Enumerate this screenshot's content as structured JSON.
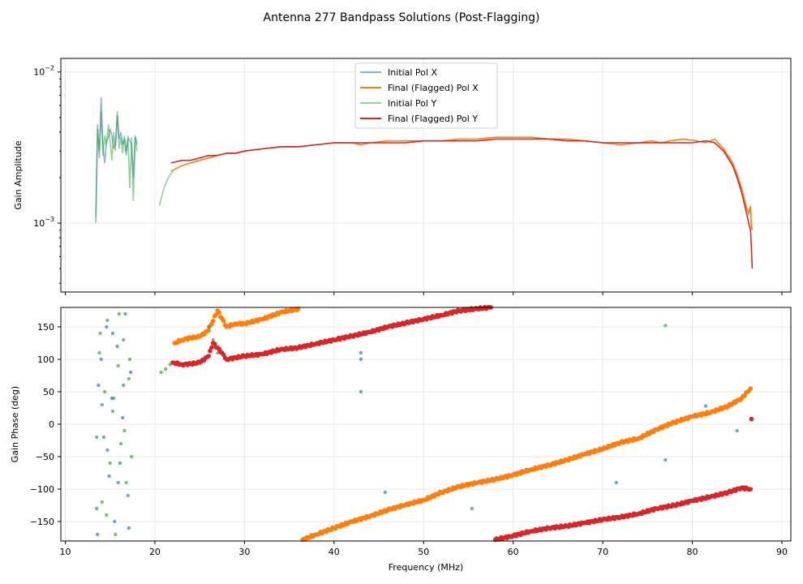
{
  "chart_data": [
    {
      "type": "line",
      "panel": "amplitude",
      "title": "Antenna 277 Bandpass Solutions (Post-Flagging)",
      "xlabel": "",
      "ylabel": "Gain Amplitude",
      "yscale": "log",
      "xlim": [
        9.5,
        91
      ],
      "ylim": [
        0.00035,
        0.0123
      ],
      "x_ticks": [
        10,
        20,
        30,
        40,
        50,
        60,
        70,
        80,
        90
      ],
      "y_ticks": [
        {
          "value": 0.001,
          "base": "10",
          "exp": "−3"
        },
        {
          "value": 0.01,
          "base": "10",
          "exp": "−2"
        }
      ],
      "grid": true,
      "legend_position": "top-center",
      "series": [
        {
          "name": "Initial Pol X",
          "color": "#1f77b4",
          "x": [
            13.4,
            13.6,
            13.8,
            14.0,
            14.2,
            14.4,
            14.6,
            14.8,
            15.0,
            15.2,
            15.4,
            15.6,
            15.8,
            16.0,
            16.2,
            16.4,
            16.6,
            16.8,
            17.0,
            17.2,
            17.4,
            17.6,
            17.8,
            18.0
          ],
          "y": [
            0.0011,
            0.0045,
            0.0027,
            0.0068,
            0.0032,
            0.0025,
            0.0035,
            0.0037,
            0.0042,
            0.0038,
            0.0031,
            0.0034,
            0.0052,
            0.0036,
            0.004,
            0.0033,
            0.0036,
            0.0028,
            0.0037,
            0.0035,
            0.0033,
            0.002,
            0.0038,
            0.0033
          ]
        },
        {
          "name": "Final (Flagged) Pol X",
          "color": "#ff7f0e",
          "x": [
            21.8,
            23.0,
            24.0,
            25.0,
            26.0,
            27.0,
            28.0,
            29.0,
            30.0,
            32.0,
            34.0,
            36.0,
            38.0,
            40.0,
            42.0,
            43.0,
            44.0,
            46.0,
            48.0,
            50.0,
            52.0,
            54.0,
            55.4,
            56.0,
            58.0,
            60.0,
            62.0,
            64.0,
            66.0,
            68.0,
            70.0,
            72.0,
            74.0,
            75.5,
            76.5,
            77.5,
            79.0,
            80.5,
            81.5,
            82.5,
            83.5,
            84.5,
            85.0,
            85.5,
            86.0,
            86.3,
            86.5,
            86.6,
            86.7
          ],
          "y": [
            0.0022,
            0.0024,
            0.0025,
            0.0026,
            0.0027,
            0.0028,
            0.0029,
            0.0029,
            0.003,
            0.0031,
            0.0032,
            0.0032,
            0.0033,
            0.0034,
            0.0034,
            0.0033,
            0.0034,
            0.0035,
            0.0035,
            0.0035,
            0.0035,
            0.0036,
            0.0036,
            0.0036,
            0.0037,
            0.0037,
            0.0037,
            0.0036,
            0.0036,
            0.0035,
            0.0034,
            0.0033,
            0.0034,
            0.0035,
            0.0034,
            0.0035,
            0.0036,
            0.0035,
            0.0034,
            0.0036,
            0.0031,
            0.0025,
            0.0021,
            0.0017,
            0.0013,
            0.00115,
            0.0013,
            0.00095,
            0.0009
          ]
        },
        {
          "name": "Initial Pol Y",
          "color": "#2ca02c",
          "x": [
            13.4,
            13.6,
            13.8,
            14.0,
            14.2,
            14.4,
            14.6,
            14.8,
            15.0,
            15.2,
            15.4,
            15.6,
            15.8,
            16.0,
            16.2,
            16.4,
            16.6,
            16.8,
            17.0,
            17.2,
            17.4,
            17.6,
            17.8,
            18.0,
            20.5,
            21.0,
            21.5,
            22.0
          ],
          "y": [
            0.001,
            0.0042,
            0.003,
            0.0055,
            0.0028,
            0.0038,
            0.0033,
            0.0045,
            0.0035,
            0.0026,
            0.004,
            0.003,
            0.0055,
            0.0031,
            0.0037,
            0.0029,
            0.0038,
            0.003,
            0.0036,
            0.0017,
            0.0037,
            0.0014,
            0.0037,
            0.003,
            0.0013,
            0.0017,
            0.002,
            0.0022
          ]
        },
        {
          "name": "Final (Flagged) Pol Y",
          "color": "#d62728",
          "x": [
            21.8,
            23.0,
            24.0,
            25.0,
            26.0,
            27.0,
            28.0,
            29.0,
            30.0,
            32.0,
            34.0,
            36.0,
            38.0,
            40.0,
            42.0,
            44.0,
            46.0,
            48.0,
            50.0,
            52.0,
            54.0,
            56.0,
            58.0,
            60.0,
            62.0,
            64.0,
            66.0,
            68.0,
            70.0,
            72.0,
            74.0,
            76.0,
            78.0,
            80.0,
            81.5,
            82.5,
            83.5,
            84.5,
            85.0,
            85.5,
            86.0,
            86.3,
            86.5,
            86.7
          ],
          "y": [
            0.0025,
            0.0026,
            0.0026,
            0.0027,
            0.0028,
            0.0028,
            0.0029,
            0.0029,
            0.003,
            0.0031,
            0.0032,
            0.0032,
            0.0033,
            0.0034,
            0.0034,
            0.0034,
            0.0034,
            0.0034,
            0.0035,
            0.0035,
            0.0035,
            0.0035,
            0.0036,
            0.0036,
            0.0036,
            0.0036,
            0.0035,
            0.0035,
            0.0034,
            0.0034,
            0.0034,
            0.0034,
            0.0034,
            0.0034,
            0.0035,
            0.0034,
            0.003,
            0.0024,
            0.002,
            0.0016,
            0.0012,
            0.001,
            0.0009,
            0.0005
          ]
        }
      ]
    },
    {
      "type": "scatter",
      "panel": "phase",
      "xlabel": "Frequency (MHz)",
      "ylabel": "Gain Phase (deg)",
      "xlim": [
        9.5,
        91
      ],
      "ylim": [
        -180,
        180
      ],
      "x_ticks": [
        10,
        20,
        30,
        40,
        50,
        60,
        70,
        80,
        90
      ],
      "y_ticks": [
        -150,
        -100,
        -50,
        0,
        50,
        100,
        150
      ],
      "grid": true,
      "series": [
        {
          "name": "Initial Pol X",
          "color": "#1f77b4",
          "x": [
            13.5,
            13.7,
            14.0,
            14.3,
            14.6,
            14.9,
            15.2,
            15.5,
            15.8,
            16.1,
            16.4,
            16.7,
            17.0,
            17.3,
            13.6,
            14.1,
            14.7,
            15.3,
            15.9,
            16.5,
            17.1,
            43.0,
            43.0,
            43.0,
            45.7,
            55.4,
            71.5,
            77.0,
            81.5,
            85.0
          ],
          "y": [
            -130,
            60,
            100,
            -20,
            150,
            -80,
            40,
            -150,
            120,
            -60,
            10,
            170,
            -110,
            80,
            -170,
            30,
            -40,
            140,
            -90,
            60,
            -160,
            110,
            100,
            50,
            -105,
            -130,
            -90,
            -55,
            28,
            -10
          ]
        },
        {
          "name": "Final (Flagged) Pol X",
          "color": "#ff7f0e",
          "x": [
            22.2,
            23.0,
            24.0,
            25.0,
            26.0,
            27.0,
            28.0,
            29.0,
            30.0,
            32.0,
            34.0,
            36.0,
            36.5,
            38.0,
            40.0,
            42.0,
            44.0,
            46.0,
            48.0,
            50.0,
            52.0,
            54.0,
            56.0,
            58.0,
            60.0,
            62.0,
            64.0,
            66.0,
            68.0,
            70.0,
            72.0,
            74.0,
            76.0,
            78.0,
            80.0,
            82.0,
            84.0,
            85.5,
            86.5
          ],
          "y": [
            125,
            130,
            133,
            135,
            145,
            175,
            150,
            155,
            155,
            162,
            172,
            178,
            -178,
            -170,
            -160,
            -150,
            -142,
            -132,
            -124,
            -117,
            -105,
            -96,
            -90,
            -85,
            -78,
            -70,
            -63,
            -55,
            -46,
            -38,
            -28,
            -22,
            -8,
            3,
            12,
            18,
            28,
            40,
            55
          ]
        },
        {
          "name": "Initial Pol Y",
          "color": "#2ca02c",
          "x": [
            13.5,
            13.8,
            14.1,
            14.4,
            14.7,
            15.0,
            15.3,
            15.6,
            15.9,
            16.2,
            16.5,
            16.8,
            17.1,
            17.4,
            13.9,
            14.6,
            15.4,
            16.0,
            16.6,
            17.2,
            20.7,
            21.2,
            21.7,
            22.1,
            26.0,
            26.5,
            27.0,
            27.3,
            77.0
          ],
          "y": [
            -20,
            110,
            -120,
            50,
            160,
            -60,
            20,
            -170,
            90,
            -30,
            130,
            -90,
            70,
            -50,
            140,
            -140,
            40,
            170,
            -10,
            100,
            80,
            85,
            92,
            95,
            150,
            130,
            110,
            115,
            152
          ]
        },
        {
          "name": "Final (Flagged) Pol Y",
          "color": "#d62728",
          "x": [
            22.0,
            23.0,
            24.0,
            25.0,
            26.0,
            26.5,
            27.5,
            28.0,
            30.0,
            32.0,
            34.0,
            36.0,
            38.0,
            40.0,
            42.0,
            44.0,
            46.0,
            48.0,
            50.0,
            52.0,
            54.0,
            56.0,
            57.5,
            58.0,
            60.0,
            62.0,
            64.0,
            66.0,
            68.0,
            70.0,
            72.0,
            74.0,
            76.0,
            78.0,
            80.0,
            82.0,
            84.0,
            85.5,
            86.5,
            86.6
          ],
          "y": [
            95,
            92,
            93,
            95,
            105,
            125,
            110,
            100,
            105,
            108,
            115,
            118,
            124,
            130,
            136,
            142,
            150,
            156,
            162,
            168,
            175,
            178,
            180,
            -178,
            -172,
            -165,
            -160,
            -157,
            -152,
            -147,
            -143,
            -138,
            -130,
            -125,
            -118,
            -112,
            -105,
            -98,
            -100,
            8
          ]
        }
      ]
    }
  ]
}
